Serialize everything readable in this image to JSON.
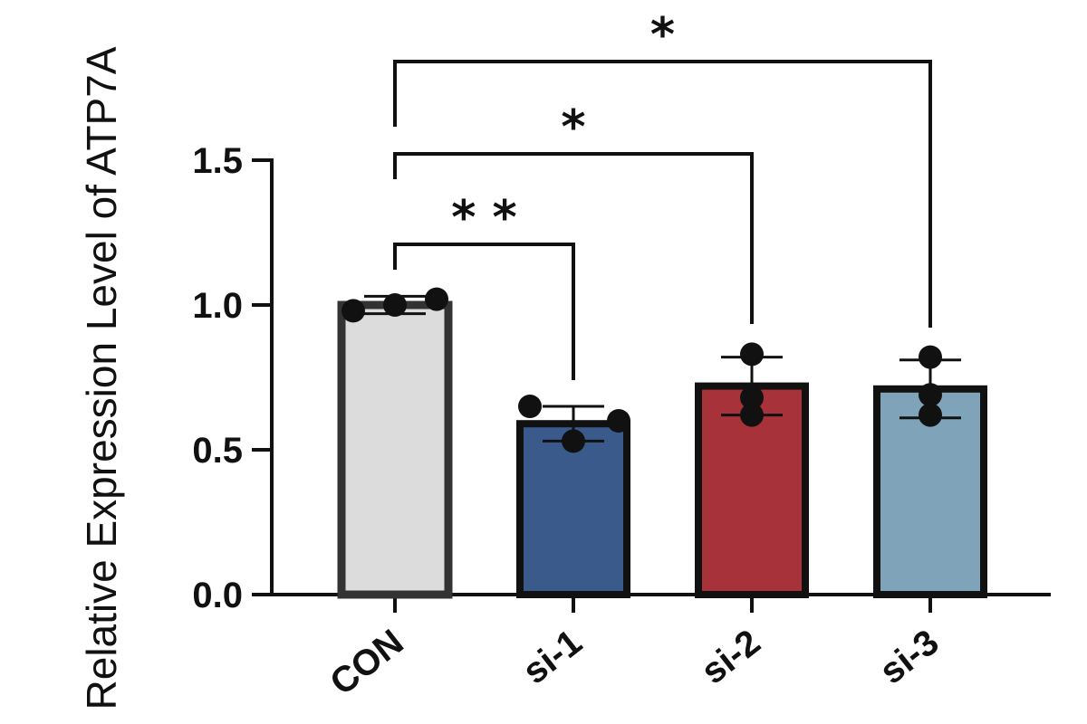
{
  "chart_data": {
    "type": "bar",
    "title": "",
    "xlabel": "",
    "ylabel": "Relative Expression Level of ATP7A",
    "ylim": [
      0,
      1.5
    ],
    "yticks": [
      0.0,
      0.5,
      1.0,
      1.5
    ],
    "ytick_labels": [
      "0.0",
      "0.5",
      "1.0",
      "1.5"
    ],
    "categories": [
      "CON",
      "si-1",
      "si-2",
      "si-3"
    ],
    "values": [
      1.0,
      0.59,
      0.72,
      0.71
    ],
    "errors": [
      0.03,
      0.06,
      0.1,
      0.1
    ],
    "colors": [
      "#dcdcdc",
      "#3a5a8c",
      "#a8323a",
      "#7fa3b8"
    ],
    "points": [
      [
        0.98,
        1.02,
        1.0
      ],
      [
        0.65,
        0.53,
        0.6
      ],
      [
        0.83,
        0.68,
        0.62
      ],
      [
        0.82,
        0.69,
        0.62
      ]
    ],
    "comparisons": [
      {
        "from": "CON",
        "to": "si-1",
        "label": "* *"
      },
      {
        "from": "CON",
        "to": "si-2",
        "label": "*"
      },
      {
        "from": "CON",
        "to": "si-3",
        "label": "*"
      }
    ]
  }
}
